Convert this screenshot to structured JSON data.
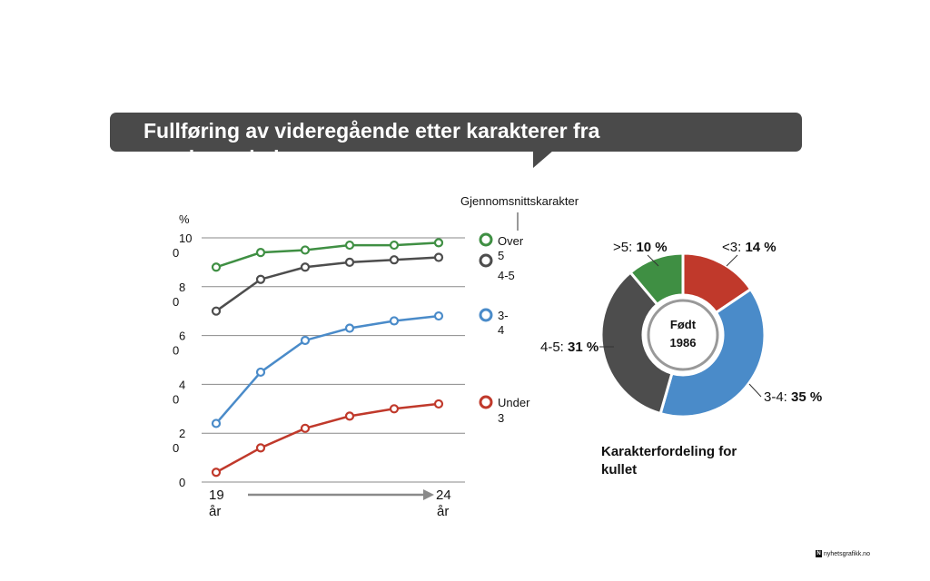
{
  "header": {
    "title": "Fullføring av videregående etter karakterer fra ungdomsskolen"
  },
  "branding": {
    "logo_text": "nyhetsgrafikk.no",
    "logo_mark": "N"
  },
  "colors": {
    "over5": "#3f8f43",
    "g45": "#4d4d4d",
    "g34": "#4a8bc9",
    "under3": "#c0392b",
    "banner": "#4a4a4a"
  },
  "chart_data": [
    {
      "type": "line",
      "ylabel": "%",
      "ylim": [
        0,
        100
      ],
      "yticks": [
        {
          "value": 0,
          "label": "0"
        },
        {
          "value": 20,
          "label": "2|0"
        },
        {
          "value": 40,
          "label": "4|0"
        },
        {
          "value": 60,
          "label": "6|0"
        },
        {
          "value": 80,
          "label": "8|0"
        },
        {
          "value": 100,
          "label": "10|0"
        }
      ],
      "grid": true,
      "x": [
        19,
        20,
        21,
        22,
        23,
        24
      ],
      "x_start_label": {
        "line1": "19",
        "line2": "år"
      },
      "x_end_label": {
        "line1": "24",
        "line2": "år"
      },
      "legend_title": "Gjennomsnittskarakter",
      "series": [
        {
          "key": "over5",
          "name": "Over 5",
          "legend_lines": [
            "Over",
            "5"
          ],
          "values": [
            88,
            94,
            95,
            97,
            97,
            98
          ]
        },
        {
          "key": "g45",
          "name": "4-5",
          "legend_lines": [
            "4-5"
          ],
          "values": [
            70,
            83,
            88,
            90,
            91,
            92
          ]
        },
        {
          "key": "g34",
          "name": "3-4",
          "legend_lines": [
            "3-",
            "4"
          ],
          "values": [
            24,
            45,
            58,
            63,
            66,
            68
          ]
        },
        {
          "key": "under3",
          "name": "Under 3",
          "legend_lines": [
            "Under",
            "3"
          ],
          "values": [
            4,
            14,
            22,
            27,
            30,
            32
          ]
        }
      ]
    },
    {
      "type": "pie",
      "center_label": {
        "line1": "Født",
        "line2": "1986"
      },
      "caption": {
        "line1": "Karakterfordeling for",
        "line2": "kullet"
      },
      "slices": [
        {
          "key": "under3",
          "label": "<3:",
          "value": 14,
          "value_label": "14 %"
        },
        {
          "key": "g34",
          "label": "3-4:",
          "value": 35,
          "value_label": "35 %"
        },
        {
          "key": "g45",
          "label": "4-5:",
          "value": 31,
          "value_label": "31 %"
        },
        {
          "key": "over5",
          "label": ">5:",
          "value": 10,
          "value_label": "10 %"
        }
      ]
    }
  ]
}
